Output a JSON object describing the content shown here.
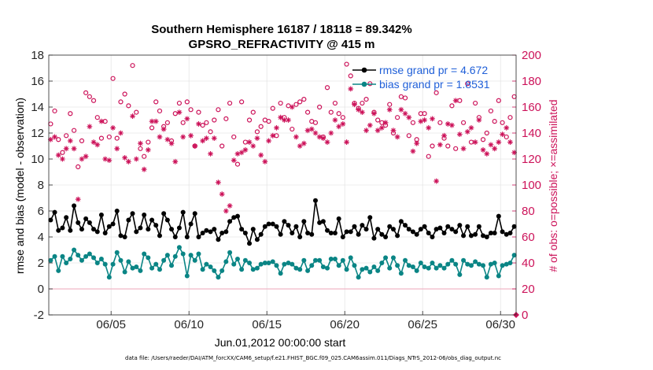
{
  "chart_data": {
    "type": "line",
    "title": "Southern Hemisphere 16187 / 18118 = 89.342%",
    "subtitle": "GPSRO_REFRACTIVITY @ 415 m",
    "xlabel": "Jun.01,2012 00:00:00 start",
    "ylabel": "rmse and bias (model - observation)",
    "ylabel_right": "# of obs: o=possible; ×=assimilated",
    "x_ticks": [
      "06/05",
      "06/10",
      "06/15",
      "06/20",
      "06/25",
      "06/30"
    ],
    "x_tick_days": [
      5,
      10,
      15,
      20,
      25,
      30
    ],
    "xlim": [
      1,
      31
    ],
    "ylim": [
      -2,
      18
    ],
    "y_ticks": [
      "-2",
      "0",
      "2",
      "4",
      "6",
      "8",
      "10",
      "12",
      "14",
      "16",
      "18"
    ],
    "y_tick_values": [
      -2,
      0,
      2,
      4,
      6,
      8,
      10,
      12,
      14,
      16,
      18
    ],
    "ylim_right": [
      0,
      200
    ],
    "y_ticks_right": [
      "0",
      "20",
      "40",
      "60",
      "80",
      "100",
      "120",
      "140",
      "160",
      "180",
      "200"
    ],
    "y_tick_values_right": [
      0,
      20,
      40,
      60,
      80,
      100,
      120,
      140,
      160,
      180,
      200
    ],
    "zero_line": 0,
    "footer": "data file: /Users/raeder/DAI/ATM_forcXX/CAM6_setup/f.e21.FHIST_BGC.f09_025.CAM6assim.011/Diags_NTrS_2012-06/obs_diag_output.nc",
    "colors": {
      "rmse": "#000000",
      "bias": "#0a8585",
      "obs": "#cc1259",
      "zero": "#f0b7c8",
      "legend_text": "#1f5fd8"
    },
    "legend": {
      "placement": "top-right",
      "entries": [
        "rmse grand pr = 4.672",
        "bias grand pr = 1.8531"
      ]
    },
    "x": [
      1.12,
      1.38,
      1.62,
      1.88,
      2.12,
      2.38,
      2.62,
      2.88,
      3.12,
      3.38,
      3.62,
      3.88,
      4.12,
      4.38,
      4.62,
      4.88,
      5.12,
      5.38,
      5.62,
      5.88,
      6.12,
      6.38,
      6.62,
      6.88,
      7.12,
      7.38,
      7.62,
      7.88,
      8.12,
      8.38,
      8.62,
      8.88,
      9.12,
      9.38,
      9.62,
      9.88,
      10.12,
      10.38,
      10.62,
      10.88,
      11.12,
      11.38,
      11.62,
      11.88,
      12.12,
      12.38,
      12.62,
      12.88,
      13.12,
      13.38,
      13.62,
      13.88,
      14.12,
      14.38,
      14.62,
      14.88,
      15.12,
      15.38,
      15.62,
      15.88,
      16.12,
      16.38,
      16.62,
      16.88,
      17.12,
      17.38,
      17.62,
      17.88,
      18.12,
      18.38,
      18.62,
      18.88,
      19.12,
      19.38,
      19.62,
      19.88,
      20.12,
      20.38,
      20.62,
      20.88,
      21.12,
      21.38,
      21.62,
      21.88,
      22.12,
      22.38,
      22.62,
      22.88,
      23.12,
      23.38,
      23.62,
      23.88,
      24.12,
      24.38,
      24.62,
      24.88,
      25.12,
      25.38,
      25.62,
      25.88,
      26.12,
      26.38,
      26.62,
      26.88,
      27.12,
      27.38,
      27.62,
      27.88,
      28.12,
      28.38,
      28.62,
      28.88,
      29.12,
      29.38,
      29.62,
      29.88,
      30.12,
      30.38,
      30.62,
      30.88
    ],
    "series": [
      {
        "name": "rmse",
        "marker": "filled-circle",
        "values": [
          5.3,
          5.9,
          4.5,
          4.7,
          5.5,
          4.5,
          6.4,
          5.1,
          4.6,
          5.4,
          5.1,
          4.6,
          4.4,
          5.7,
          4.3,
          4.8,
          5.0,
          6.0,
          4.1,
          4.0,
          5.3,
          5.8,
          4.4,
          4.7,
          5.7,
          4.6,
          5.3,
          4.9,
          4.1,
          5.8,
          5.3,
          4.6,
          4.0,
          4.7,
          5.9,
          4.0,
          5.0,
          5.8,
          4.0,
          4.3,
          4.5,
          4.4,
          4.6,
          3.8,
          4.3,
          4.4,
          5.2,
          5.5,
          5.6,
          4.6,
          4.3,
          3.5,
          4.6,
          3.8,
          4.2,
          4.8,
          5.0,
          5.0,
          4.8,
          4.2,
          5.2,
          4.9,
          4.3,
          4.8,
          4.0,
          5.2,
          4.3,
          4.2,
          6.8,
          5.1,
          5.2,
          4.5,
          4.3,
          4.3,
          5.4,
          4.0,
          4.4,
          4.4,
          4.8,
          4.2,
          4.9,
          4.6,
          5.5,
          3.9,
          4.6,
          4.2,
          4.0,
          4.8,
          4.6,
          4.1,
          5.2,
          4.9,
          4.6,
          4.4,
          4.2,
          4.6,
          4.8,
          4.3,
          4.0,
          4.6,
          4.7,
          4.3,
          4.8,
          4.6,
          4.4,
          4.9,
          4.1,
          4.8,
          4.1,
          4.2,
          4.8,
          4.1,
          4.0,
          4.3,
          4.3,
          5.6,
          4.4,
          4.2,
          4.3,
          4.8
        ]
      },
      {
        "name": "bias",
        "marker": "filled-circle",
        "values": [
          2.2,
          2.5,
          1.4,
          2.5,
          2.0,
          2.3,
          3.0,
          2.6,
          2.2,
          2.5,
          2.7,
          2.4,
          2.0,
          2.3,
          1.9,
          0.9,
          1.9,
          2.8,
          2.2,
          1.3,
          2.1,
          1.6,
          1.7,
          1.4,
          2.7,
          2.4,
          1.6,
          1.9,
          1.5,
          2.2,
          2.6,
          1.8,
          2.5,
          3.2,
          2.7,
          1.0,
          2.6,
          2.2,
          2.7,
          1.5,
          1.9,
          1.7,
          1.4,
          0.9,
          1.4,
          2.1,
          2.8,
          1.9,
          2.3,
          1.5,
          2.2,
          2.0,
          1.5,
          1.6,
          1.9,
          2.0,
          2.0,
          2.1,
          1.8,
          1.2,
          1.9,
          2.0,
          1.9,
          1.6,
          1.5,
          2.2,
          1.4,
          1.8,
          2.2,
          2.2,
          1.7,
          1.6,
          2.3,
          2.3,
          1.8,
          2.2,
          1.5,
          2.4,
          1.8,
          0.9,
          1.5,
          1.6,
          1.3,
          1.7,
          1.4,
          2.0,
          2.4,
          1.6,
          2.4,
          1.8,
          1.2,
          2.2,
          1.8,
          1.7,
          1.4,
          2.0,
          1.7,
          1.6,
          2.0,
          1.6,
          1.8,
          1.6,
          1.9,
          2.2,
          1.9,
          1.1,
          2.2,
          1.9,
          1.8,
          2.1,
          1.9,
          1.8,
          0.9,
          1.9,
          2.0,
          1.0,
          1.8,
          1.9,
          2.0,
          2.6
        ]
      },
      {
        "name": "possible",
        "axis": "right",
        "marker": "open-circle",
        "values": [
          147,
          157,
          135,
          125,
          138,
          155,
          142,
          114,
          134,
          171,
          168,
          165,
          152,
          136,
          149,
          137,
          182,
          136,
          164,
          170,
          161,
          192,
          156,
          128,
          122,
          133,
          144,
          164,
          157,
          145,
          148,
          134,
          155,
          163,
          148,
          164,
          158,
          130,
          156,
          146,
          148,
          141,
          150,
          158,
          130,
          151,
          163,
          137,
          116,
          164,
          133,
          150,
          156,
          141,
          145,
          150,
          149,
          159,
          138,
          163,
          152,
          161,
          143,
          162,
          164,
          166,
          156,
          149,
          148,
          160,
          137,
          175,
          156,
          163,
          155,
          152,
          193,
          184,
          163,
          159,
          163,
          166,
          178,
          156,
          150,
          148,
          146,
          162,
          140,
          152,
          168,
          167,
          138,
          148,
          135,
          155,
          155,
          122,
          130,
          171,
          148,
          136,
          130,
          161,
          128,
          165,
          148,
          178,
          133,
          163,
          152,
          135,
          140,
          157,
          149,
          165,
          148,
          137,
          152,
          168
        ]
      },
      {
        "name": "assimilated",
        "axis": "right",
        "marker": "asterisk",
        "values": [
          135,
          137,
          123,
          120,
          128,
          134,
          128,
          89,
          120,
          122,
          145,
          133,
          131,
          149,
          120,
          119,
          144,
          128,
          140,
          121,
          118,
          153,
          120,
          132,
          112,
          127,
          149,
          149,
          137,
          143,
          135,
          132,
          118,
          156,
          137,
          151,
          138,
          130,
          147,
          134,
          136,
          124,
          136,
          102,
          93,
          80,
          84,
          119,
          124,
          125,
          127,
          133,
          130,
          136,
          123,
          118,
          134,
          138,
          144,
          152,
          150,
          150,
          160,
          137,
          130,
          132,
          142,
          143,
          140,
          137,
          136,
          133,
          140,
          150,
          145,
          147,
          133,
          174,
          162,
          158,
          156,
          142,
          146,
          155,
          142,
          144,
          148,
          158,
          142,
          137,
          158,
          155,
          152,
          126,
          132,
          149,
          150,
          144,
          151,
          103,
          131,
          138,
          147,
          146,
          165,
          139,
          128,
          141,
          144,
          133,
          150,
          127,
          124,
          131,
          128,
          133,
          139,
          144,
          133,
          125
        ]
      }
    ]
  }
}
